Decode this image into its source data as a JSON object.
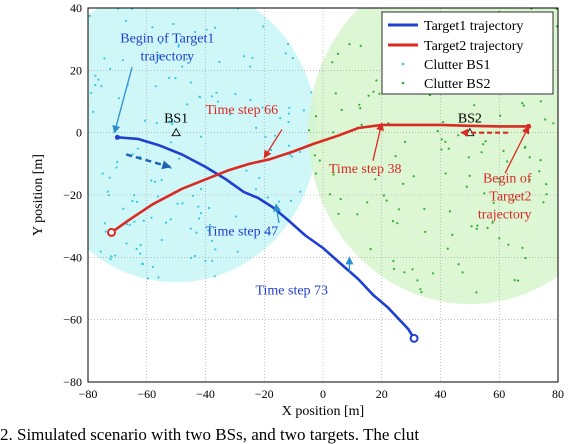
{
  "caption": "2.   Simulated scenario with two BSs, and two targets. The clut",
  "chart_data": {
    "type": "scatter",
    "xlabel": "X position [m]",
    "ylabel": "Y position [m]",
    "xlim": [
      -80,
      80
    ],
    "ylim": [
      -80,
      40
    ],
    "xticks": [
      -80,
      -60,
      -40,
      -20,
      0,
      20,
      40,
      60,
      80
    ],
    "yticks": [
      -80,
      -60,
      -40,
      -20,
      0,
      20,
      40
    ],
    "grid": true,
    "legend_position": "top-right",
    "colors": {
      "target1": "#1f3fd0",
      "target2": "#d92b22",
      "clutter1": "#38c7e3",
      "clutter2": "#2fae2f",
      "region1": "#cff7f8",
      "region2": "#d7f4cc",
      "overlap": "#dff5ee"
    },
    "series": [
      {
        "name": "Target1 trajectory",
        "x": [
          -70,
          -63,
          -56,
          -48,
          -40,
          -33,
          -27,
          -22,
          -17,
          -12,
          -6,
          0,
          6,
          12,
          17,
          22,
          26,
          29,
          31
        ],
        "y": [
          -1.5,
          -2,
          -4,
          -7,
          -11,
          -15,
          -19,
          -21,
          -24,
          -28,
          -33,
          -37,
          -42,
          -47,
          -52,
          -56,
          -60,
          -63,
          -66
        ]
      },
      {
        "name": "Target2 trajectory",
        "x": [
          -72,
          -66,
          -58,
          -48,
          -40,
          -32,
          -25,
          -18,
          -10,
          -3,
          5,
          12,
          20,
          30,
          40,
          50,
          60,
          70
        ],
        "y": [
          -32,
          -28,
          -23,
          -18,
          -15,
          -12,
          -10,
          -8.5,
          -6,
          -3.5,
          -1,
          1.5,
          2.5,
          2.5,
          2.5,
          2.2,
          2,
          2
        ]
      },
      {
        "name": "Clutter BS1",
        "count": 180,
        "center": [
          -50,
          0
        ],
        "radius": 48
      },
      {
        "name": "Clutter BS2",
        "count": 180,
        "center": [
          50,
          0
        ],
        "radius": 55
      }
    ],
    "base_stations": [
      {
        "label": "BS1",
        "x": -50,
        "y": 0
      },
      {
        "label": "BS2",
        "x": 50,
        "y": 0
      }
    ],
    "annotations": [
      {
        "id": "begin-t1",
        "lines": [
          "Begin of Target1",
          "trajectory"
        ],
        "color": "#1f3fd0"
      },
      {
        "id": "ts66",
        "lines": [
          "Time step 66"
        ],
        "color": "#d92b22"
      },
      {
        "id": "ts38",
        "lines": [
          "Time step 38"
        ],
        "color": "#d92b22"
      },
      {
        "id": "ts47",
        "lines": [
          "Time step 47"
        ],
        "color": "#1f3fd0"
      },
      {
        "id": "ts73",
        "lines": [
          "Time step 73"
        ],
        "color": "#1f3fd0"
      },
      {
        "id": "begin-t2",
        "lines": [
          "Begin of",
          "Target2",
          "trajectory"
        ],
        "color": "#d92b22"
      }
    ]
  }
}
